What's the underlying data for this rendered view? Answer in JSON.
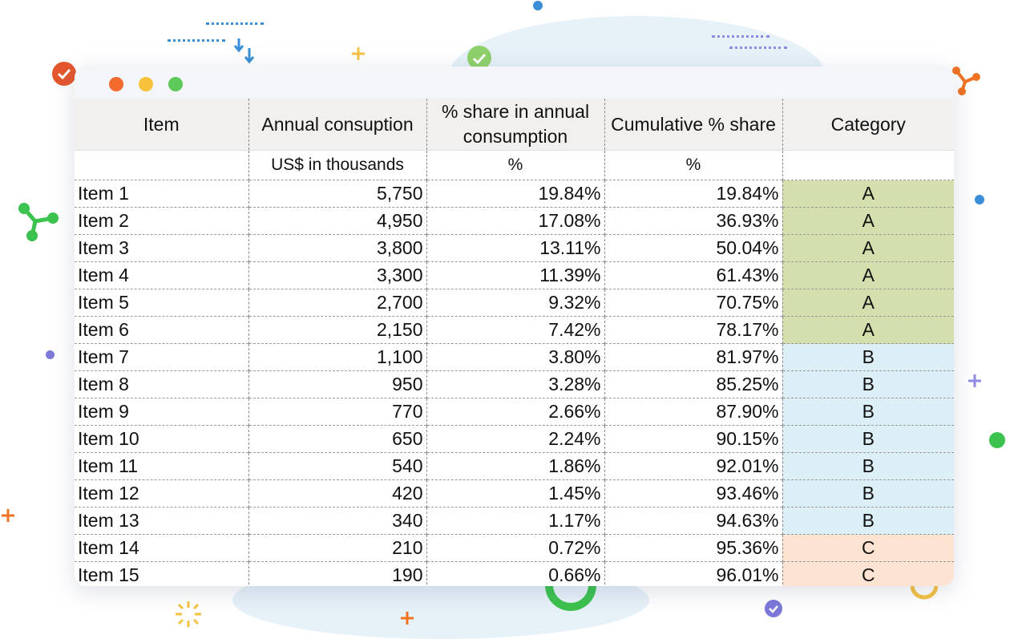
{
  "window": {
    "traffic_lights": [
      {
        "name": "close",
        "color": "#f26a2e"
      },
      {
        "name": "minimize",
        "color": "#f7c23b"
      },
      {
        "name": "maximize",
        "color": "#5cc95a"
      }
    ]
  },
  "table": {
    "headers": [
      "Item",
      "Annual consuption",
      "% share in annual consumption",
      "Cumulative % share",
      "Category"
    ],
    "units": [
      "",
      "US$ in thousands",
      "%",
      "%",
      ""
    ],
    "rows": [
      {
        "item": "Item 1",
        "annual": "5,750",
        "share": "19.84%",
        "cumulative": "19.84%",
        "category": "A"
      },
      {
        "item": "Item 2",
        "annual": "4,950",
        "share": "17.08%",
        "cumulative": "36.93%",
        "category": "A"
      },
      {
        "item": "Item 3",
        "annual": "3,800",
        "share": "13.11%",
        "cumulative": "50.04%",
        "category": "A"
      },
      {
        "item": "Item 4",
        "annual": "3,300",
        "share": "11.39%",
        "cumulative": "61.43%",
        "category": "A"
      },
      {
        "item": "Item 5",
        "annual": "2,700",
        "share": "9.32%",
        "cumulative": "70.75%",
        "category": "A"
      },
      {
        "item": "Item 6",
        "annual": "2,150",
        "share": "7.42%",
        "cumulative": "78.17%",
        "category": "A"
      },
      {
        "item": "Item 7",
        "annual": "1,100",
        "share": "3.80%",
        "cumulative": "81.97%",
        "category": "B"
      },
      {
        "item": "Item 8",
        "annual": "950",
        "share": "3.28%",
        "cumulative": "85.25%",
        "category": "B"
      },
      {
        "item": "Item 9",
        "annual": "770",
        "share": "2.66%",
        "cumulative": "87.90%",
        "category": "B"
      },
      {
        "item": "Item 10",
        "annual": "650",
        "share": "2.24%",
        "cumulative": "90.15%",
        "category": "B"
      },
      {
        "item": "Item 11",
        "annual": "540",
        "share": "1.86%",
        "cumulative": "92.01%",
        "category": "B"
      },
      {
        "item": "Item 12",
        "annual": "420",
        "share": "1.45%",
        "cumulative": "93.46%",
        "category": "B"
      },
      {
        "item": "Item 13",
        "annual": "340",
        "share": "1.17%",
        "cumulative": "94.63%",
        "category": "B"
      },
      {
        "item": "Item 14",
        "annual": "210",
        "share": "0.72%",
        "cumulative": "95.36%",
        "category": "C"
      },
      {
        "item": "Item 15",
        "annual": "190",
        "share": "0.66%",
        "cumulative": "96.01%",
        "category": "C"
      }
    ],
    "category_colors": {
      "A": "#d3dfad",
      "B": "#dceef6",
      "C": "#fde3d1"
    }
  }
}
